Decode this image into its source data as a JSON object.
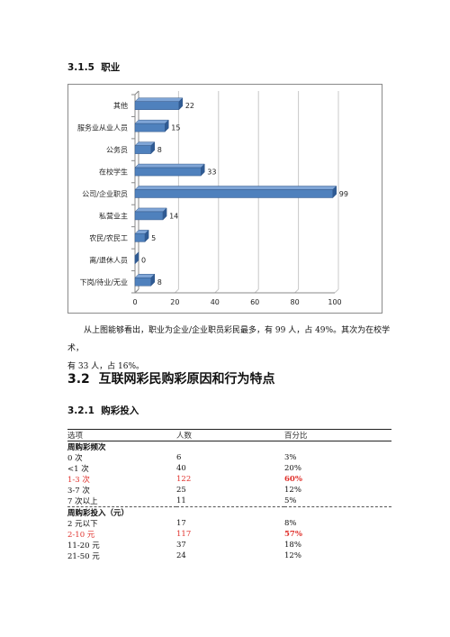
{
  "section_315": {
    "number": "3.1.5",
    "title": "职业"
  },
  "chart_data": {
    "type": "bar",
    "orientation": "horizontal",
    "categories": [
      "其他",
      "服务业从业人员",
      "公务员",
      "在校学生",
      "公司/企业职员",
      "私营业主",
      "农民/农民工",
      "离/退休人员",
      "下岗/待业/无业"
    ],
    "values": [
      22,
      15,
      8,
      33,
      99,
      14,
      5,
      0,
      8
    ],
    "x_ticks": [
      "0",
      "20",
      "40",
      "60",
      "80",
      "100"
    ],
    "xlim": [
      0,
      100
    ],
    "grid": "vertical",
    "color": "#4f81bd",
    "title": "",
    "xlabel": "",
    "ylabel": ""
  },
  "paragraph": {
    "line1": "从上图能够看出，职业为企业/企业职员彩民最多，有 99 人，占 49%。其次为在校学术，",
    "line2": "有 33 人，占 16%。"
  },
  "section_32": {
    "number": "3.2",
    "title": "互联网彩民购彩原因和行为特点"
  },
  "section_321": {
    "number": "3.2.1",
    "title": "购彩投入"
  },
  "table": {
    "headers": [
      "选项",
      "人数",
      "百分比"
    ],
    "groups": [
      {
        "title": "周购彩频次",
        "rows": [
          {
            "option": "0 次",
            "count": "6",
            "percent": "3%"
          },
          {
            "option": "<1 次",
            "count": "40",
            "percent": "20%"
          },
          {
            "option": "1-3 次",
            "count": "122",
            "percent": "60%",
            "highlight": true
          },
          {
            "option": "3-7 次",
            "count": "25",
            "percent": "12%"
          },
          {
            "option": "7 次以上",
            "count": "11",
            "percent": "5%"
          }
        ]
      },
      {
        "title": "周购彩投入（元）",
        "rows": [
          {
            "option": "2 元以下",
            "count": "17",
            "percent": "8%"
          },
          {
            "option": "2-10 元",
            "count": "117",
            "percent": "57%",
            "highlight": true
          },
          {
            "option": "11-20 元",
            "count": "37",
            "percent": "18%"
          },
          {
            "option": "21-50 元",
            "count": "24",
            "percent": "12%"
          }
        ]
      }
    ]
  }
}
